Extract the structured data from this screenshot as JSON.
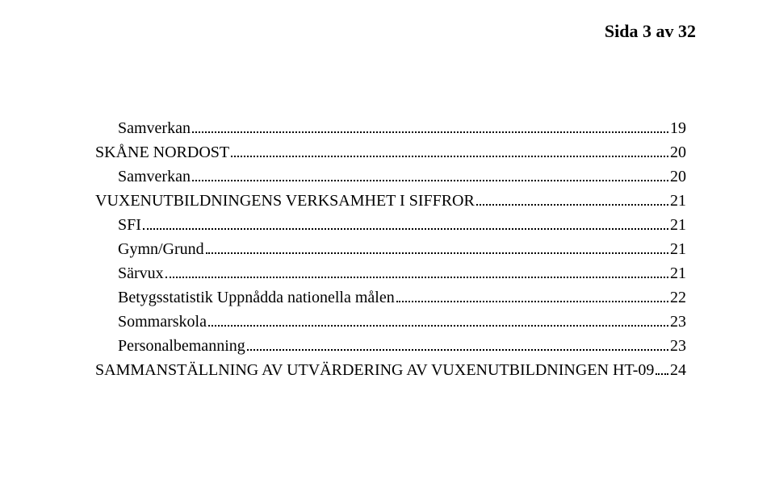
{
  "header": {
    "text": "Sida 3 av 32"
  },
  "toc": {
    "items": [
      {
        "level": "lvl1",
        "title": "Samverkan",
        "page": "19"
      },
      {
        "level": "lvl0",
        "title": "SKÅNE NORDOST",
        "page": "20"
      },
      {
        "level": "lvl1",
        "title": "Samverkan",
        "page": "20"
      },
      {
        "level": "lvl0",
        "title": "VUXENUTBILDNINGENS VERKSAMHET I SIFFROR",
        "page": "21"
      },
      {
        "level": "lvl1",
        "title": "SFI",
        "page": "21"
      },
      {
        "level": "lvl1",
        "title": "Gymn/Grund",
        "page": "21"
      },
      {
        "level": "lvl1",
        "title": "Särvux",
        "page": "21"
      },
      {
        "level": "lvl1",
        "title": "Betygsstatistik Uppnådda nationella målen",
        "page": "22"
      },
      {
        "level": "lvl1",
        "title": "Sommarskola",
        "page": "23"
      },
      {
        "level": "lvl1",
        "title": "Personalbemanning",
        "page": "23"
      },
      {
        "level": "lvl0",
        "title": "SAMMANSTÄLLNING AV UTVÄRDERING AV VUXENUTBILDNINGEN HT-09",
        "page": "24"
      }
    ]
  }
}
